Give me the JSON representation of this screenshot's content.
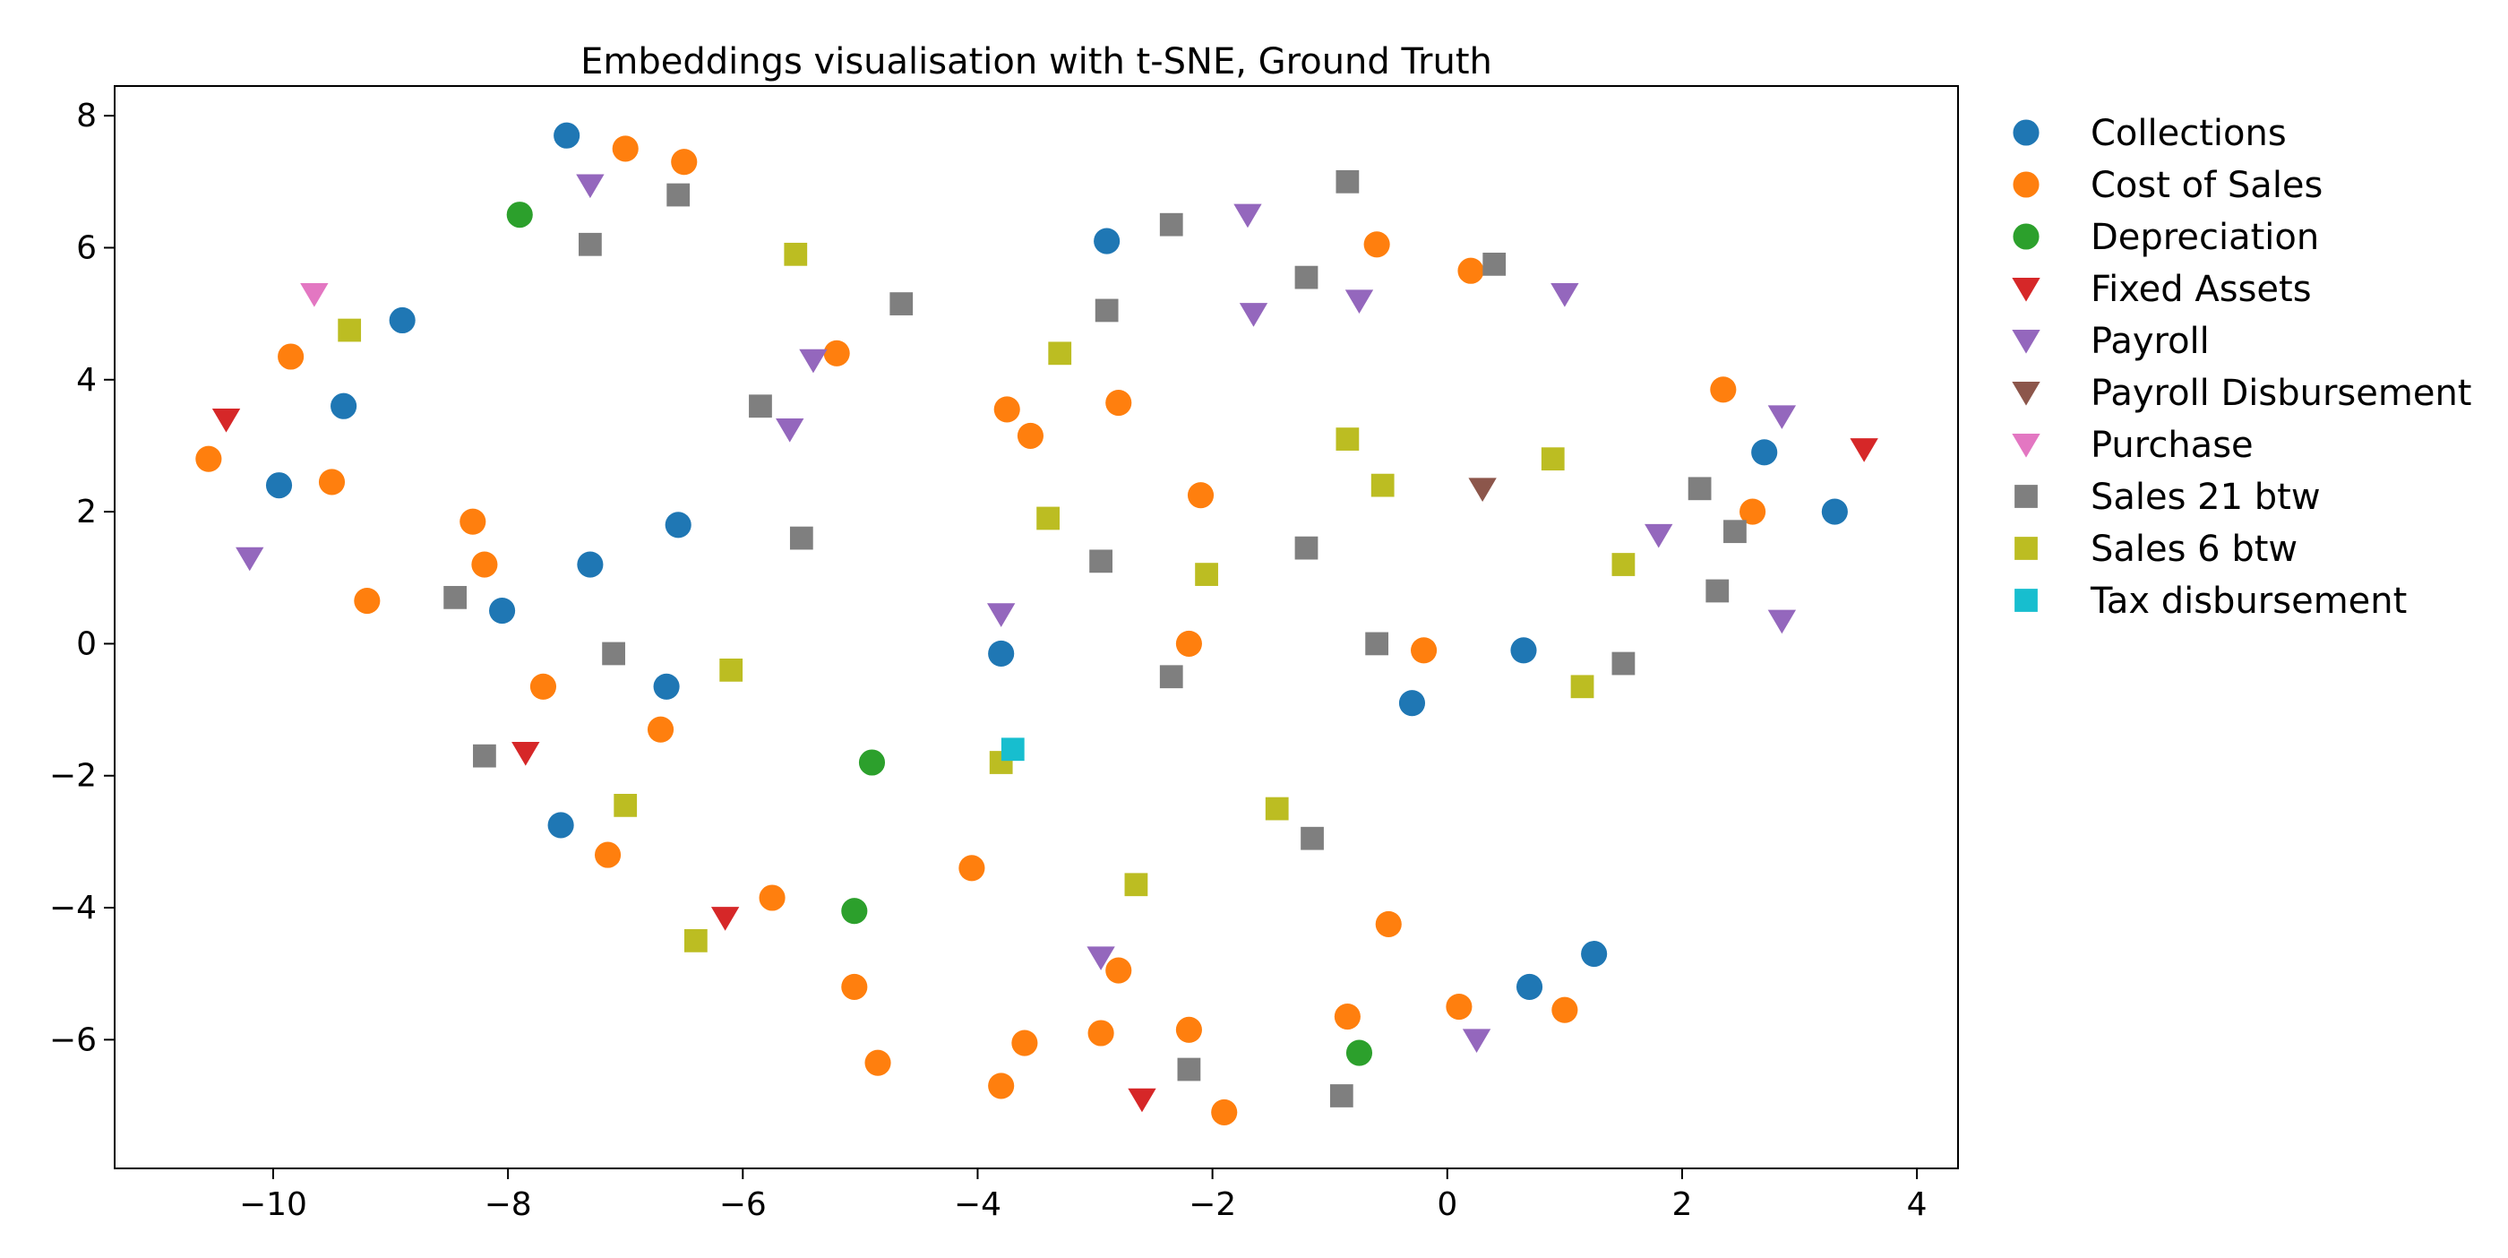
{
  "chart_data": {
    "type": "scatter",
    "title": "Embeddings visualisation with t-SNE, Ground Truth",
    "xlabel": "",
    "ylabel": "",
    "xlim": [
      -11.35,
      4.35
    ],
    "ylim": [
      -7.95,
      8.45
    ],
    "xticks": [
      -10,
      -8,
      -6,
      -4,
      -2,
      0,
      2,
      4
    ],
    "yticks": [
      -6,
      -4,
      -2,
      0,
      2,
      4,
      6,
      8
    ],
    "grid": false,
    "legend_position": "right-outside",
    "series": [
      {
        "name": "Collections",
        "color": "#1f77b4",
        "marker": "circle",
        "points": [
          [
            -7.5,
            7.7
          ],
          [
            -8.9,
            4.9
          ],
          [
            -9.4,
            3.6
          ],
          [
            -9.95,
            2.4
          ],
          [
            -6.55,
            1.8
          ],
          [
            -7.3,
            1.2
          ],
          [
            -8.05,
            0.5
          ],
          [
            -6.65,
            -0.65
          ],
          [
            -7.55,
            -2.75
          ],
          [
            -3.8,
            -0.15
          ],
          [
            -2.9,
            6.1
          ],
          [
            0.65,
            -0.1
          ],
          [
            -0.3,
            -0.9
          ],
          [
            0.7,
            -5.2
          ],
          [
            1.25,
            -4.7
          ],
          [
            2.7,
            2.9
          ],
          [
            3.3,
            2.0
          ]
        ]
      },
      {
        "name": "Cost of Sales",
        "color": "#ff7f0e",
        "marker": "circle",
        "points": [
          [
            -7.0,
            7.5
          ],
          [
            -6.5,
            7.3
          ],
          [
            -9.85,
            4.35
          ],
          [
            -10.55,
            2.8
          ],
          [
            -9.5,
            2.45
          ],
          [
            -9.2,
            0.65
          ],
          [
            -8.3,
            1.85
          ],
          [
            -8.2,
            1.2
          ],
          [
            -7.7,
            -0.65
          ],
          [
            -6.7,
            -1.3
          ],
          [
            -7.15,
            -3.2
          ],
          [
            -5.75,
            -3.85
          ],
          [
            -5.2,
            4.4
          ],
          [
            -3.75,
            3.55
          ],
          [
            -3.55,
            3.15
          ],
          [
            -2.8,
            3.65
          ],
          [
            -2.1,
            2.25
          ],
          [
            -2.2,
            0.0
          ],
          [
            -4.05,
            -3.4
          ],
          [
            -5.05,
            -5.2
          ],
          [
            -4.85,
            -6.35
          ],
          [
            -3.8,
            -6.7
          ],
          [
            -3.6,
            -6.05
          ],
          [
            -2.95,
            -5.9
          ],
          [
            -2.8,
            -4.95
          ],
          [
            -2.2,
            -5.85
          ],
          [
            -1.9,
            -7.1
          ],
          [
            -0.85,
            -5.65
          ],
          [
            -0.5,
            -4.25
          ],
          [
            0.1,
            -5.5
          ],
          [
            1.0,
            -5.55
          ],
          [
            -0.2,
            -0.1
          ],
          [
            -0.6,
            6.05
          ],
          [
            0.2,
            5.65
          ],
          [
            2.35,
            3.85
          ],
          [
            2.6,
            2.0
          ]
        ]
      },
      {
        "name": "Depreciation",
        "color": "#2ca02c",
        "marker": "circle",
        "points": [
          [
            -7.9,
            6.5
          ],
          [
            -4.9,
            -1.8
          ],
          [
            -5.05,
            -4.05
          ],
          [
            -0.75,
            -6.2
          ]
        ]
      },
      {
        "name": "Fixed Assets",
        "color": "#d62728",
        "marker": "triangle-down",
        "points": [
          [
            -10.4,
            3.4
          ],
          [
            -7.85,
            -1.65
          ],
          [
            -6.15,
            -4.15
          ],
          [
            -2.6,
            -6.9
          ],
          [
            3.55,
            2.95
          ]
        ]
      },
      {
        "name": "Payroll",
        "color": "#9467bd",
        "marker": "triangle-down",
        "points": [
          [
            -7.3,
            6.95
          ],
          [
            -5.4,
            4.3
          ],
          [
            -5.6,
            3.25
          ],
          [
            -10.2,
            1.3
          ],
          [
            -3.8,
            0.45
          ],
          [
            -1.7,
            6.5
          ],
          [
            -1.65,
            5.0
          ],
          [
            -0.75,
            5.2
          ],
          [
            1.0,
            5.3
          ],
          [
            2.85,
            3.45
          ],
          [
            1.8,
            1.65
          ],
          [
            2.85,
            0.35
          ],
          [
            -2.95,
            -4.75
          ],
          [
            0.25,
            -6.0
          ]
        ]
      },
      {
        "name": "Payroll Disbursement",
        "color": "#8c564b",
        "marker": "triangle-down",
        "points": [
          [
            0.3,
            2.35
          ]
        ]
      },
      {
        "name": "Purchase",
        "color": "#e377c2",
        "marker": "triangle-down",
        "points": [
          [
            -9.65,
            5.3
          ]
        ]
      },
      {
        "name": "Sales 21 btw",
        "color": "#7f7f7f",
        "marker": "square",
        "points": [
          [
            -6.55,
            6.8
          ],
          [
            -7.3,
            6.05
          ],
          [
            -4.65,
            5.15
          ],
          [
            -5.85,
            3.6
          ],
          [
            -5.5,
            1.6
          ],
          [
            -8.45,
            0.7
          ],
          [
            -7.1,
            -0.15
          ],
          [
            -8.2,
            -1.7
          ],
          [
            -2.35,
            6.35
          ],
          [
            -2.9,
            5.05
          ],
          [
            -1.2,
            5.55
          ],
          [
            -0.85,
            7.0
          ],
          [
            0.4,
            5.75
          ],
          [
            -2.95,
            1.25
          ],
          [
            -1.2,
            1.45
          ],
          [
            -2.35,
            -0.5
          ],
          [
            -0.6,
            0.0
          ],
          [
            -1.15,
            -2.95
          ],
          [
            -2.2,
            -6.45
          ],
          [
            -0.9,
            -6.85
          ],
          [
            1.5,
            -0.3
          ],
          [
            2.15,
            2.35
          ],
          [
            2.45,
            1.7
          ],
          [
            2.3,
            0.8
          ]
        ]
      },
      {
        "name": "Sales 6 btw",
        "color": "#bcbd22",
        "marker": "square",
        "points": [
          [
            -9.35,
            4.75
          ],
          [
            -5.55,
            5.9
          ],
          [
            -3.3,
            4.4
          ],
          [
            -3.4,
            1.9
          ],
          [
            -6.1,
            -0.4
          ],
          [
            -7.0,
            -2.45
          ],
          [
            -6.4,
            -4.5
          ],
          [
            -3.8,
            -1.8
          ],
          [
            -2.05,
            1.05
          ],
          [
            -0.85,
            3.1
          ],
          [
            -0.55,
            2.4
          ],
          [
            0.9,
            2.8
          ],
          [
            1.5,
            1.2
          ],
          [
            1.15,
            -0.65
          ],
          [
            -1.45,
            -2.5
          ],
          [
            -2.65,
            -3.65
          ]
        ]
      },
      {
        "name": "Tax disbursement",
        "color": "#17becf",
        "marker": "square",
        "points": [
          [
            -3.7,
            -1.6
          ]
        ]
      }
    ]
  }
}
